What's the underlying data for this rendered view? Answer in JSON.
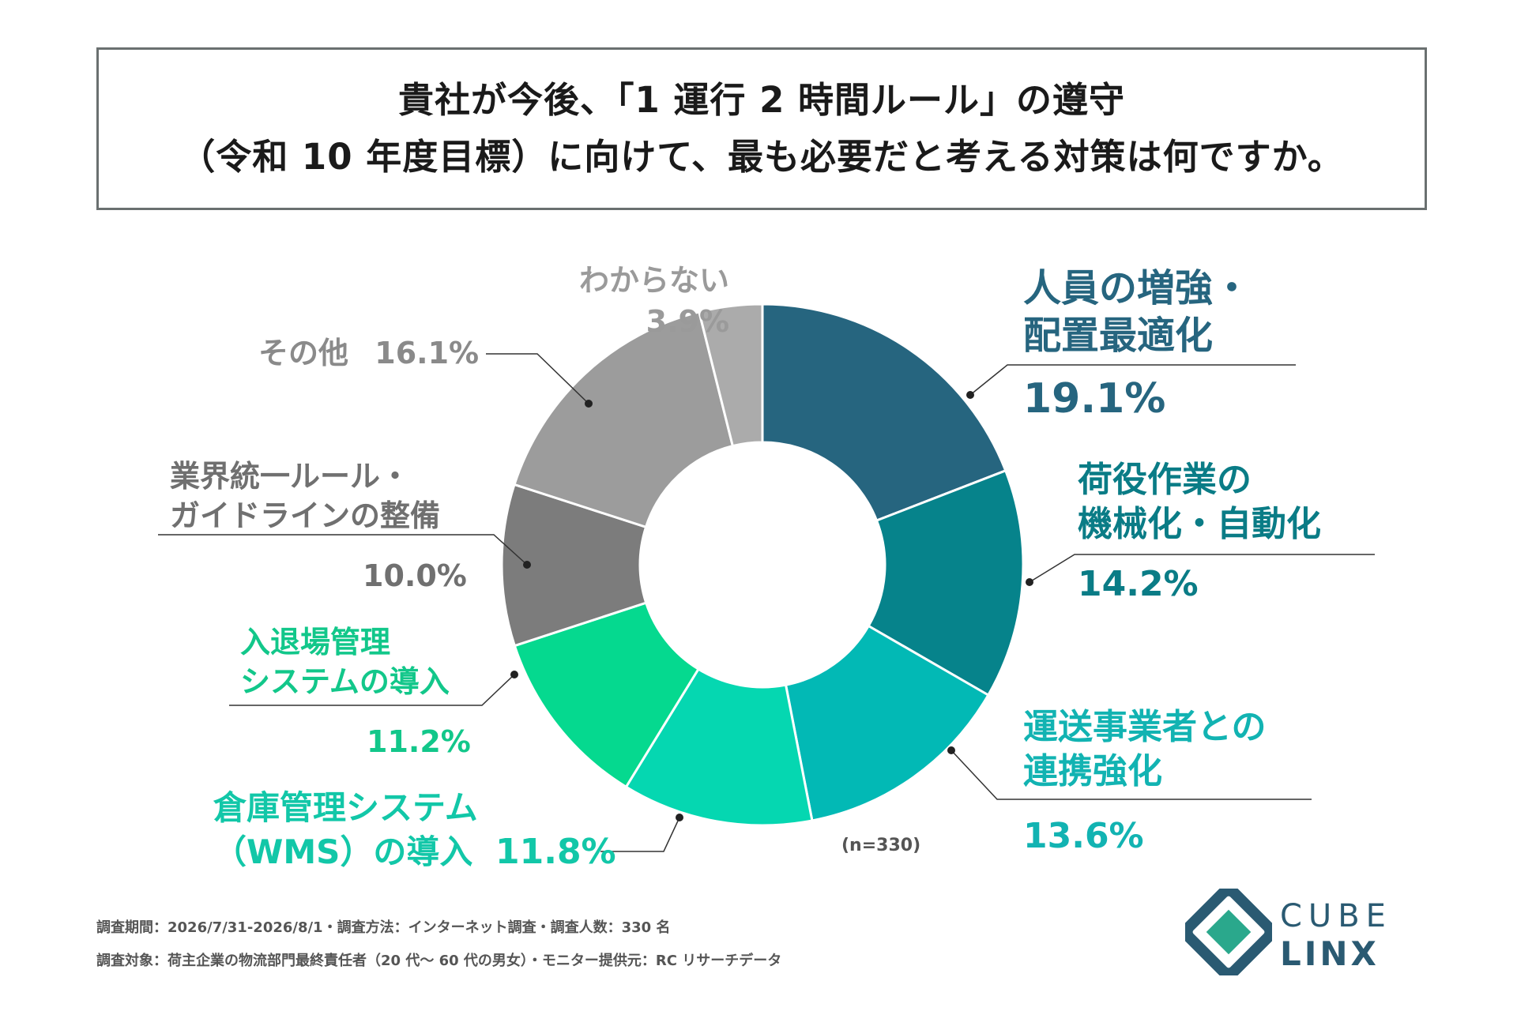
{
  "title": {
    "line1": "貴社が今後、「1 運行 2 時間ルール」の遵守",
    "line2": "（令和 10 年度目標）に向けて、最も必要だと考える対策は何ですか。"
  },
  "chart_data": {
    "type": "pie",
    "variant": "donut",
    "unit": "%",
    "sample_note": "(n=330)",
    "slices": [
      {
        "label_lines": [
          "人員の増強・",
          "配置最適化"
        ],
        "label": "人員の増強・配置最適化",
        "value": 19.1,
        "value_text": "19.1%",
        "color": "#26657f",
        "label_color": "#26657f"
      },
      {
        "label_lines": [
          "荷役作業の",
          "機械化・自動化"
        ],
        "label": "荷役作業の機械化・自動化",
        "value": 14.2,
        "value_text": "14.2%",
        "color": "#06838b",
        "label_color": "#0a7c86"
      },
      {
        "label_lines": [
          "運送事業者との",
          "連携強化"
        ],
        "label": "運送事業者との連携強化",
        "value": 13.6,
        "value_text": "13.6%",
        "color": "#02b9b5",
        "label_color": "#12b3b2"
      },
      {
        "label_lines": [
          "倉庫管理システム",
          "（WMS）の導入"
        ],
        "label": "倉庫管理システム（WMS）の導入",
        "value": 11.8,
        "value_text": "11.8%",
        "color": "#05d7b1",
        "label_color": "#12c7a8"
      },
      {
        "label_lines": [
          "入退場管理",
          "システムの導入"
        ],
        "label": "入退場管理システムの導入",
        "value": 11.2,
        "value_text": "11.2%",
        "color": "#05d98f",
        "label_color": "#12c78a"
      },
      {
        "label_lines": [
          "業界統一ルール・",
          "ガイドラインの整備"
        ],
        "label": "業界統一ルール・ガイドラインの整備",
        "value": 10.0,
        "value_text": "10.0%",
        "color": "#7c7c7c",
        "label_color": "#707070"
      },
      {
        "label_lines": [
          "その他"
        ],
        "label": "その他",
        "value": 16.1,
        "value_text": "16.1%",
        "color": "#9c9c9c",
        "label_color": "#8a8a8a"
      },
      {
        "label_lines": [
          "わからない"
        ],
        "label": "わからない",
        "value": 3.9,
        "value_text": "3.9%",
        "color": "#ababab",
        "label_color": "#9a9a9a"
      }
    ]
  },
  "footer": {
    "line1": "調査期間：2026/7/31-2026/8/1・調査方法：インターネット調査・調査人数：330 名",
    "line2": "調査対象：荷主企業の物流部門最終責任者（20 代〜 60 代の男女）・モニター提供元：RC リサーチデータ"
  },
  "logo": {
    "line1": "CUBE",
    "line2": "LINX",
    "color": "#2a5a72",
    "accent": "#2aa88c"
  }
}
